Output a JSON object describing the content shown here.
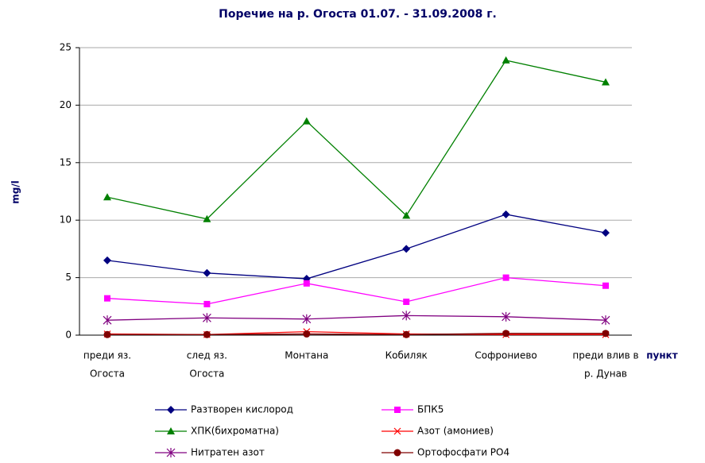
{
  "chart_data": {
    "type": "line",
    "title": "Поречие на р. Огоста  01.07. - 31.09.2008 г.",
    "y_label": "mg/l",
    "x_label": "пункт",
    "categories": [
      [
        "преди яз.",
        "Огоста"
      ],
      [
        "след яз.",
        "Огоста"
      ],
      [
        "Монтана"
      ],
      [
        "Кобиляк"
      ],
      [
        "Софрониево"
      ],
      [
        "преди влив в",
        "р. Дунав"
      ]
    ],
    "ylim": [
      0,
      25
    ],
    "yticks": [
      0,
      5,
      10,
      15,
      20,
      25
    ],
    "grid": true,
    "series": [
      {
        "name": "Разтворен кислород",
        "color": "#000080",
        "marker": "diamond",
        "values": [
          6.5,
          5.4,
          4.9,
          7.5,
          10.5,
          8.9
        ]
      },
      {
        "name": "БПК5",
        "color": "#ff00ff",
        "marker": "square",
        "values": [
          3.2,
          2.7,
          4.5,
          2.9,
          5.0,
          4.3
        ]
      },
      {
        "name": "ХПК(бихроматна)",
        "color": "#008000",
        "marker": "triangle",
        "values": [
          12.0,
          10.1,
          18.6,
          10.4,
          23.9,
          22.0
        ]
      },
      {
        "name": "Азот (амониев)",
        "color": "#ff0000",
        "marker": "x",
        "values": [
          0.1,
          0.05,
          0.3,
          0.1,
          0.05,
          0.05
        ]
      },
      {
        "name": "Нитратен азот",
        "color": "#800080",
        "marker": "star",
        "values": [
          1.3,
          1.5,
          1.4,
          1.7,
          1.6,
          1.3
        ]
      },
      {
        "name": "Ортофосфати PO4",
        "color": "#800000",
        "marker": "circle",
        "values": [
          0.05,
          0.05,
          0.1,
          0.05,
          0.15,
          0.15
        ]
      }
    ]
  }
}
